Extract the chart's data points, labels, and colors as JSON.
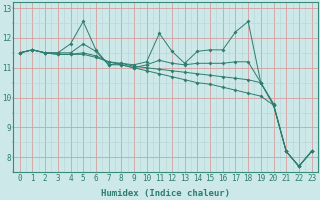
{
  "xlabel": "Humidex (Indice chaleur)",
  "x": [
    0,
    1,
    2,
    3,
    4,
    5,
    6,
    7,
    8,
    9,
    10,
    11,
    12,
    13,
    14,
    15,
    16,
    17,
    18,
    19,
    20,
    21,
    22,
    23
  ],
  "series": [
    [
      11.5,
      11.6,
      11.5,
      11.5,
      11.8,
      12.55,
      11.6,
      11.1,
      11.15,
      11.1,
      11.2,
      12.15,
      11.55,
      11.15,
      11.55,
      11.6,
      11.6,
      12.2,
      12.55,
      10.5,
      9.8,
      8.2,
      7.7,
      8.2
    ],
    [
      11.5,
      11.6,
      11.5,
      11.5,
      11.5,
      11.8,
      11.55,
      11.1,
      11.1,
      11.0,
      11.1,
      11.25,
      11.15,
      11.1,
      11.15,
      11.15,
      11.15,
      11.2,
      11.2,
      10.5,
      9.75,
      8.2,
      7.7,
      8.2
    ],
    [
      11.5,
      11.6,
      11.5,
      11.45,
      11.45,
      11.5,
      11.4,
      11.2,
      11.15,
      11.05,
      11.0,
      10.95,
      10.9,
      10.85,
      10.8,
      10.75,
      10.7,
      10.65,
      10.6,
      10.5,
      9.75,
      8.2,
      7.7,
      8.2
    ],
    [
      11.5,
      11.6,
      11.5,
      11.45,
      11.45,
      11.45,
      11.35,
      11.2,
      11.1,
      11.0,
      10.9,
      10.8,
      10.7,
      10.6,
      10.5,
      10.45,
      10.35,
      10.25,
      10.15,
      10.05,
      9.75,
      8.2,
      7.7,
      8.2
    ]
  ],
  "line_color": "#2e7d6e",
  "marker": "D",
  "marker_size": 2.0,
  "bg_color": "#cce8e8",
  "major_grid_color": "#d4a0a0",
  "minor_grid_color": "#b8d4d4",
  "ylim": [
    7.5,
    13.2
  ],
  "yticks": [
    8,
    9,
    10,
    11,
    12,
    13
  ],
  "xticks": [
    0,
    1,
    2,
    3,
    4,
    5,
    6,
    7,
    8,
    9,
    10,
    11,
    12,
    13,
    14,
    15,
    16,
    17,
    18,
    19,
    20,
    21,
    22,
    23
  ],
  "xlabel_fontsize": 6.5,
  "tick_fontsize": 5.5,
  "linewidth": 0.7
}
